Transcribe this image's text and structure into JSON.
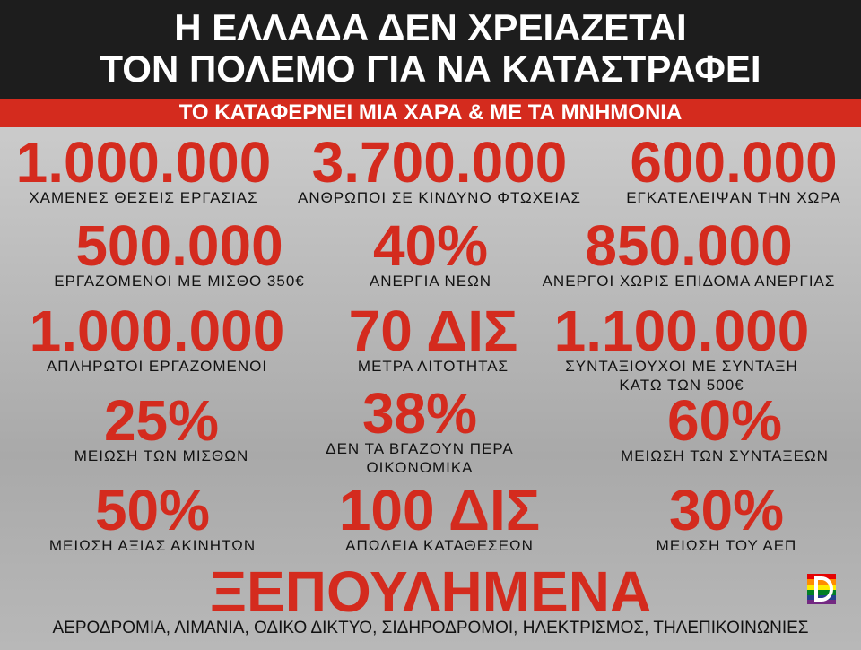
{
  "header": {
    "title_lines": [
      "Η ΕΛΛΑΔΑ ΔΕΝ ΧΡΕΙΑΖΕΤΑΙ",
      "ΤΟΝ ΠΟΛΕΜΟ ΓΙΑ ΝΑ ΚΑΤΑΣΤΡΑΦΕΙ"
    ],
    "banner": "ΤΟ ΚΑΤΑΦΕΡΝΕΙ ΜΙΑ ΧΑΡΑ & ΜΕ ΤΑ ΜΝΗΜΟΝΙΑ"
  },
  "stats": [
    {
      "value": "1.000.000",
      "caption": [
        "ΧΑΜΕΝΕΣ ΘΕΣΕΙΣ ΕΡΓΑΣΙΑΣ"
      ]
    },
    {
      "value": "3.700.000",
      "caption": [
        "ΑΝΘΡΩΠΟΙ ΣΕ ΚΙΝΔΥΝΟ ΦΤΩΧΕΙΑΣ"
      ]
    },
    {
      "value": "600.000",
      "caption": [
        "ΕΓΚΑΤΕΛΕΙΨΑΝ ΤΗΝ ΧΩΡΑ"
      ]
    },
    {
      "value": "500.000",
      "caption": [
        "ΕΡΓΑΖΟΜΕΝΟΙ ΜΕ ΜΙΣΘΟ 350€"
      ]
    },
    {
      "value": "40%",
      "caption": [
        "ΑΝΕΡΓΙΑ ΝΕΩΝ"
      ]
    },
    {
      "value": "850.000",
      "caption": [
        "ΑΝΕΡΓΟΙ ΧΩΡΙΣ ΕΠΙΔΟΜΑ ΑΝΕΡΓΙΑΣ"
      ]
    },
    {
      "value": "1.000.000",
      "caption": [
        "ΑΠΛΗΡΩΤΟΙ ΕΡΓΑΖΟΜΕΝΟΙ"
      ]
    },
    {
      "value": "70 ΔΙΣ",
      "caption": [
        "ΜΕΤΡΑ ΛΙΤΟΤΗΤΑΣ"
      ]
    },
    {
      "value": "1.100.000",
      "caption": [
        "ΣΥΝΤΑΞΙΟΥΧΟΙ ΜΕ ΣΥΝΤΑΞΗ",
        "ΚΑΤΩ ΤΩΝ 500€"
      ]
    },
    {
      "value": "25%",
      "caption": [
        "ΜΕΙΩΣΗ ΤΩΝ ΜΙΣΘΩΝ"
      ]
    },
    {
      "value": "38%",
      "caption": [
        "ΔΕΝ ΤΑ ΒΓΑΖΟΥΝ ΠΕΡΑ",
        "ΟΙΚΟΝΟΜΙΚΑ"
      ]
    },
    {
      "value": "60%",
      "caption": [
        "ΜΕΙΩΣΗ ΤΩΝ ΣΥΝΤΑΞΕΩΝ"
      ]
    },
    {
      "value": "50%",
      "caption": [
        "ΜΕΙΩΣΗ ΑΞΙΑΣ ΑΚΙΝΗΤΩΝ"
      ]
    },
    {
      "value": "100 ΔΙΣ",
      "caption": [
        "ΑΠΩΛΕΙΑ ΚΑΤΑΘΕΣΕΩΝ"
      ]
    },
    {
      "value": "30%",
      "caption": [
        "ΜΕΙΩΣΗ ΤΟΥ ΑΕΠ"
      ]
    }
  ],
  "footer": {
    "title": "ΞΕΠΟΥΛΗΜΕΝΑ",
    "caption": "ΑΕΡΟΔΡΟΜΙΑ, ΛΙΜΑΝΙΑ, ΟΔΙΚΟ ΔΙΚΤΥΟ, ΣΙΔΗΡΟΔΡΟΜΟΙ, ΗΛΕΚΤΡΙΣΜΟΣ, ΤΗΛΕΠΙΚΟΙΝΩΝΙΕΣ"
  }
}
